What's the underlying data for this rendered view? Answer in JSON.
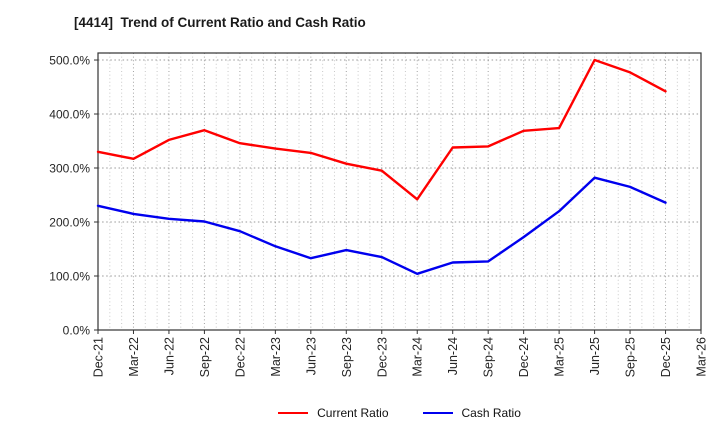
{
  "title": "[4414]  Trend of Current Ratio and Cash Ratio",
  "chart_data": {
    "type": "line",
    "title": "[4414]  Trend of Current Ratio and Cash Ratio",
    "x_labels": [
      "Dec-21",
      "Mar-22",
      "Jun-22",
      "Sep-22",
      "Dec-22",
      "Mar-23",
      "Jun-23",
      "Sep-23",
      "Dec-23",
      "Mar-24",
      "Jun-24",
      "Sep-24",
      "Dec-24",
      "Mar-25",
      "Jun-25",
      "Sep-25",
      "Dec-25",
      "Mar-26"
    ],
    "y_ticks": [
      "0.0%",
      "100.0%",
      "200.0%",
      "300.0%",
      "400.0%",
      "500.0%"
    ],
    "ylim": [
      0,
      513
    ],
    "y_unit": "percent",
    "grid": true,
    "minor_x_divisions": 3,
    "legend_position": "bottom-center",
    "series": [
      {
        "name": "Current Ratio",
        "color": "#ff0000",
        "values": [
          330,
          317,
          352,
          370,
          346,
          336,
          328,
          308,
          295,
          242,
          338,
          340,
          369,
          374,
          500,
          477,
          442
        ]
      },
      {
        "name": "Cash Ratio",
        "color": "#0000ee",
        "values": [
          230,
          215,
          206,
          201,
          183,
          155,
          133,
          148,
          135,
          104,
          125,
          127,
          172,
          220,
          282,
          265,
          236
        ]
      }
    ]
  }
}
